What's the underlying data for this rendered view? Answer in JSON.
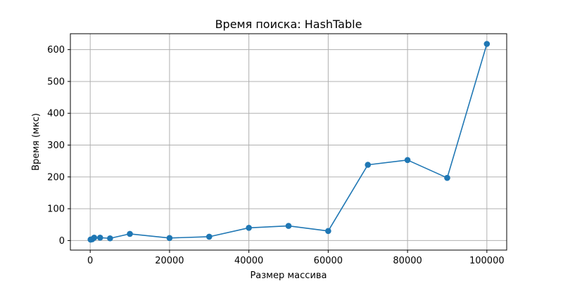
{
  "chart_data": {
    "type": "line",
    "title": "Время поиска: HashTable",
    "xlabel": "Размер массива",
    "ylabel": "Время (мкс)",
    "xlim": [
      -5000,
      105000
    ],
    "ylim": [
      -30,
      650
    ],
    "xticks": [
      0,
      20000,
      40000,
      60000,
      80000,
      100000
    ],
    "yticks": [
      0,
      100,
      200,
      300,
      400,
      500,
      600
    ],
    "grid": true,
    "series": [
      {
        "color": "#1f77b4",
        "marker": "circle",
        "x": [
          100,
          500,
          1000,
          2500,
          5000,
          10000,
          20000,
          30000,
          40000,
          50000,
          60000,
          70000,
          80000,
          90000,
          100000
        ],
        "y": [
          3,
          4,
          9,
          9,
          7,
          21,
          8,
          12,
          40,
          46,
          30,
          238,
          253,
          197,
          618
        ]
      }
    ]
  }
}
